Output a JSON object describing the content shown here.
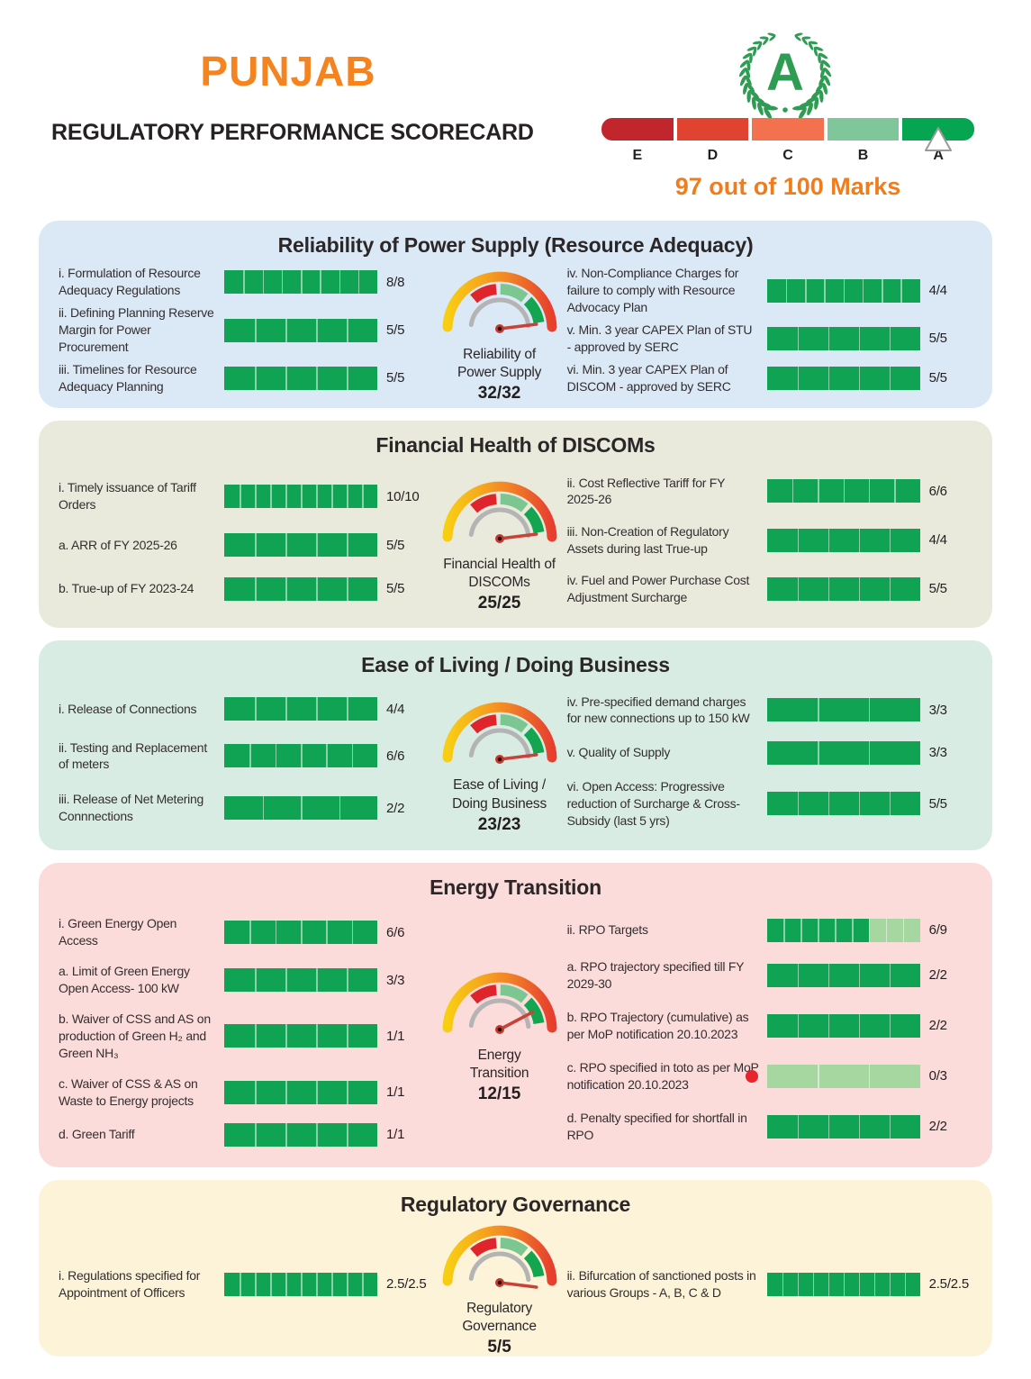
{
  "overall": {
    "state": "PUNJAB",
    "title": "REGULATORY PERFORMANCE SCORECARD",
    "grade": "A",
    "marks_text": "97 out of 100 Marks",
    "marks": 97,
    "out_of": 100
  },
  "colors": {
    "brand_orange": "#f5831f",
    "marks_orange": "#ef7d1d",
    "bar_green": "#10a353",
    "bar_light_green": "#a7d7a1",
    "flag_red": "#e8242c",
    "wreath_green": "#2e9c52",
    "gauge_red": "#e0242b",
    "gauge_light_green": "#7cc791",
    "gauge_dark_green": "#14a551",
    "gauge_gray": "#b5b4b4"
  },
  "rating_scale": {
    "pointer_at": "A",
    "segments": [
      {
        "label": "E",
        "color": "#c1262d"
      },
      {
        "label": "D",
        "color": "#e14331"
      },
      {
        "label": "C",
        "color": "#f4714f"
      },
      {
        "label": "B",
        "color": "#7fc79b"
      },
      {
        "label": "A",
        "color": "#05a551"
      }
    ]
  },
  "sections": [
    {
      "title": "Reliability of Power Supply (Resource Adequacy)",
      "bg": "#dbe8f5",
      "gauge": {
        "label_lines": [
          "Reliability of",
          "Power Supply"
        ],
        "score": "32/32",
        "needle_deg": 7
      },
      "left_items": [
        {
          "label": "i. Formulation of Resource Adequacy Regulations",
          "value": "8/8",
          "num": 8,
          "den": 8,
          "segments": 8
        },
        {
          "label": "ii. Defining Planning Reserve Margin for Power Procurement",
          "value": "5/5",
          "num": 5,
          "den": 5,
          "segments": 5
        },
        {
          "label": "iii. Timelines for Resource Adequacy Planning",
          "value": "5/5",
          "num": 5,
          "den": 5,
          "segments": 5
        }
      ],
      "right_items": [
        {
          "label": "iv. Non-Compliance Charges for failure to comply with Resource Advocacy Plan",
          "value": "4/4",
          "num": 4,
          "den": 4,
          "segments": 8
        },
        {
          "label": "v. Min. 3 year CAPEX Plan of STU - approved by SERC",
          "value": "5/5",
          "num": 5,
          "den": 5,
          "segments": 5
        },
        {
          "label": "vi. Min. 3 year CAPEX Plan of DISCOM - approved by SERC",
          "value": "5/5",
          "num": 5,
          "den": 5,
          "segments": 5
        }
      ]
    },
    {
      "title": "Financial Health of DISCOMs",
      "bg": "#e9e9dc",
      "gauge": {
        "label_lines": [
          "Financial Health of",
          "DISCOMs"
        ],
        "score": "25/25",
        "needle_deg": 7
      },
      "left_items": [
        {
          "label": "i. Timely issuance of Tariff Orders",
          "value": "10/10",
          "num": 10,
          "den": 10,
          "segments": 10
        },
        {
          "label": "a. ARR of FY 2025-26",
          "value": "5/5",
          "num": 5,
          "den": 5,
          "segments": 5
        },
        {
          "label": "b. True-up of FY 2023-24",
          "value": "5/5",
          "num": 5,
          "den": 5,
          "segments": 5
        }
      ],
      "right_items": [
        {
          "label": "ii. Cost Reflective Tariff for FY 2025-26",
          "value": "6/6",
          "num": 6,
          "den": 6,
          "segments": 6
        },
        {
          "label": "iii. Non-Creation of Regulatory Assets during last True-up",
          "value": "4/4",
          "num": 4,
          "den": 4,
          "segments": 5
        },
        {
          "label": "iv. Fuel and Power Purchase Cost Adjustment Surcharge",
          "value": "5/5",
          "num": 5,
          "den": 5,
          "segments": 5
        }
      ]
    },
    {
      "title": "Ease of Living / Doing Business",
      "bg": "#d9ece4",
      "gauge": {
        "label_lines": [
          "Ease of Living /",
          "Doing Business"
        ],
        "score": "23/23",
        "needle_deg": 7
      },
      "left_items": [
        {
          "label": "i. Release of Connections",
          "value": "4/4",
          "num": 4,
          "den": 4,
          "segments": 5
        },
        {
          "label": "ii. Testing and Replacement of meters",
          "value": "6/6",
          "num": 6,
          "den": 6,
          "segments": 6
        },
        {
          "label": "iii. Release of Net Metering Connnections",
          "value": "2/2",
          "num": 2,
          "den": 2,
          "segments": 4
        }
      ],
      "right_items": [
        {
          "label": "iv. Pre-specified demand charges for new connections up to 150 kW",
          "value": "3/3",
          "num": 3,
          "den": 3,
          "segments": 3
        },
        {
          "label": "v. Quality of Supply",
          "value": "3/3",
          "num": 3,
          "den": 3,
          "segments": 3
        },
        {
          "label": "vi. Open Access: Progressive reduction of Surcharge & Cross-Subsidy (last 5 yrs)",
          "value": "5/5",
          "num": 5,
          "den": 5,
          "segments": 5
        }
      ]
    },
    {
      "title": "Energy Transition",
      "bg": "#fcdcda",
      "gauge": {
        "label_lines": [
          "Energy",
          "Transition"
        ],
        "score": "12/15",
        "needle_deg": 28
      },
      "left_items": [
        {
          "label": "i. Green Energy Open Access",
          "value": "6/6",
          "num": 6,
          "den": 6,
          "segments": 6
        },
        {
          "label": "a. Limit of Green Energy Open Access- 100 kW",
          "value": "3/3",
          "num": 3,
          "den": 3,
          "segments": 5
        },
        {
          "label": "b. Waiver of CSS and AS on production of Green H₂ and Green NH₃",
          "value": "1/1",
          "num": 1,
          "den": 1,
          "segments": 5
        },
        {
          "label": "c. Waiver of CSS & AS on Waste to Energy projects",
          "value": "1/1",
          "num": 1,
          "den": 1,
          "segments": 5
        },
        {
          "label": "d. Green Tariff",
          "value": "1/1",
          "num": 1,
          "den": 1,
          "segments": 5
        }
      ],
      "right_items": [
        {
          "label": "ii. RPO Targets",
          "value": "6/9",
          "num": 6,
          "den": 9,
          "segments": 9
        },
        {
          "label": "a. RPO trajectory specified till FY 2029-30",
          "value": "2/2",
          "num": 2,
          "den": 2,
          "segments": 5
        },
        {
          "label": "b. RPO Trajectory (cumulative) as per MoP notification 20.10.2023",
          "value": "2/2",
          "num": 2,
          "den": 2,
          "segments": 5
        },
        {
          "label": "c. RPO specified in toto as per MoP notification 20.10.2023",
          "value": "0/3",
          "num": 0,
          "den": 3,
          "segments": 3,
          "red_dot": true
        },
        {
          "label": "d. Penalty specified for shortfall in RPO",
          "value": "2/2",
          "num": 2,
          "den": 2,
          "segments": 5
        }
      ]
    },
    {
      "title": "Regulatory Governance",
      "bg": "#fcf3d9",
      "gauge": {
        "label_lines": [
          "Regulatory",
          "Governance"
        ],
        "score": "5/5",
        "needle_deg": -7
      },
      "left_items": [
        {
          "label": "i. Regulations specified for Appointment of Officers",
          "value": "2.5/2.5",
          "num": 2.5,
          "den": 2.5,
          "segments": 10
        }
      ],
      "right_items": [
        {
          "label": "ii. Bifurcation of sanctioned posts in various Groups - A, B, C & D",
          "value": "2.5/2.5",
          "num": 2.5,
          "den": 2.5,
          "segments": 10
        }
      ]
    }
  ],
  "chart_data": [
    {
      "type": "bar",
      "title": "Reliability of Power Supply (Resource Adequacy)",
      "gauge": {
        "label": "Reliability of Power Supply",
        "score": 32,
        "max": 32
      },
      "categories": [
        "Formulation of Resource Adequacy Regulations",
        "Defining Planning Reserve Margin for Power Procurement",
        "Timelines for Resource Adequacy Planning",
        "Non-Compliance Charges for failure to comply with Resource Advocacy Plan",
        "Min. 3 year CAPEX Plan of STU - approved by SERC",
        "Min. 3 year CAPEX Plan of DISCOM - approved by SERC"
      ],
      "series": [
        {
          "name": "score",
          "values": [
            8,
            5,
            5,
            4,
            5,
            5
          ]
        },
        {
          "name": "max",
          "values": [
            8,
            5,
            5,
            4,
            5,
            5
          ]
        }
      ]
    },
    {
      "type": "bar",
      "title": "Financial Health of DISCOMs",
      "gauge": {
        "label": "Financial Health of DISCOMs",
        "score": 25,
        "max": 25
      },
      "categories": [
        "Timely issuance of Tariff Orders",
        "ARR of FY 2025-26",
        "True-up of FY 2023-24",
        "Cost Reflective Tariff for FY 2025-26",
        "Non-Creation of Regulatory Assets during last True-up",
        "Fuel and Power Purchase Cost Adjustment Surcharge"
      ],
      "series": [
        {
          "name": "score",
          "values": [
            10,
            5,
            5,
            6,
            4,
            5
          ]
        },
        {
          "name": "max",
          "values": [
            10,
            5,
            5,
            6,
            4,
            5
          ]
        }
      ]
    },
    {
      "type": "bar",
      "title": "Ease of Living / Doing Business",
      "gauge": {
        "label": "Ease of Living / Doing Business",
        "score": 23,
        "max": 23
      },
      "categories": [
        "Release of Connections",
        "Testing and Replacement of meters",
        "Release of Net Metering Connnections",
        "Pre-specified demand charges for new connections up to 150 kW",
        "Quality of Supply",
        "Open Access: Progressive reduction of Surcharge & Cross-Subsidy (last 5 yrs)"
      ],
      "series": [
        {
          "name": "score",
          "values": [
            4,
            6,
            2,
            3,
            3,
            5
          ]
        },
        {
          "name": "max",
          "values": [
            4,
            6,
            2,
            3,
            3,
            5
          ]
        }
      ]
    },
    {
      "type": "bar",
      "title": "Energy Transition",
      "gauge": {
        "label": "Energy Transition",
        "score": 12,
        "max": 15
      },
      "categories": [
        "Green Energy Open Access",
        "Limit of Green Energy Open Access- 100 kW",
        "Waiver of CSS and AS on production of Green H₂ and Green NH₃",
        "Waiver of CSS & AS on Waste to Energy projects",
        "Green Tariff",
        "RPO Targets",
        "RPO trajectory specified till FY 2029-30",
        "RPO Trajectory (cumulative) as per MoP notification 20.10.2023",
        "RPO specified in toto as per MoP notification 20.10.2023",
        "Penalty specified for shortfall in RPO"
      ],
      "series": [
        {
          "name": "score",
          "values": [
            6,
            3,
            1,
            1,
            1,
            6,
            2,
            2,
            0,
            2
          ]
        },
        {
          "name": "max",
          "values": [
            6,
            3,
            1,
            1,
            1,
            9,
            2,
            2,
            3,
            2
          ]
        }
      ]
    },
    {
      "type": "bar",
      "title": "Regulatory Governance",
      "gauge": {
        "label": "Regulatory Governance",
        "score": 5,
        "max": 5
      },
      "categories": [
        "Regulations specified for Appointment of Officers",
        "Bifurcation of sanctioned posts in various Groups - A, B, C & D"
      ],
      "series": [
        {
          "name": "score",
          "values": [
            2.5,
            2.5
          ]
        },
        {
          "name": "max",
          "values": [
            2.5,
            2.5
          ]
        }
      ]
    }
  ]
}
